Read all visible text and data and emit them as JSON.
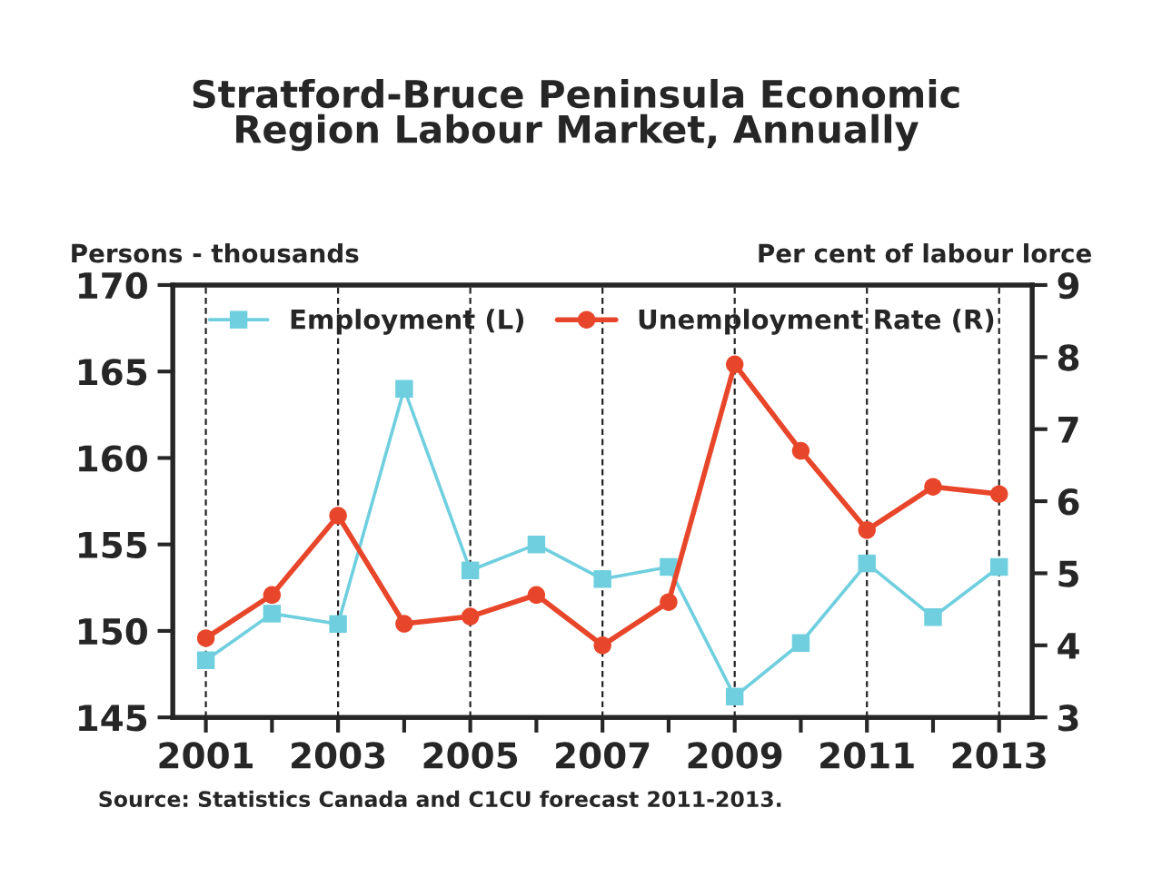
{
  "chart_data": {
    "type": "line",
    "title": "Stratford-Bruce Peninsula Economic\nRegion Labour Market, Annually",
    "ylabel": "Persons - thousands",
    "y2label": "Per cent of labour lorce",
    "x": [
      2001,
      2002,
      2003,
      2004,
      2005,
      2006,
      2007,
      2008,
      2009,
      2010,
      2011,
      2012,
      2013
    ],
    "series": [
      {
        "name": "Employment (L)",
        "color": "#6fcfdf",
        "marker": "square",
        "values": [
          148.3,
          151.0,
          150.4,
          164.0,
          153.5,
          155.0,
          153.0,
          153.7,
          146.2,
          149.3,
          153.9,
          150.8,
          153.7
        ]
      },
      {
        "name": "Unemployment Rate (R)",
        "color": "#e8462a",
        "marker": "circle",
        "axis": "y2",
        "values": [
          4.1,
          4.7,
          5.8,
          4.3,
          4.4,
          4.7,
          4.0,
          4.6,
          7.9,
          6.7,
          5.6,
          6.2,
          6.1
        ]
      }
    ],
    "xlim": [
      2000.5,
      2013.5
    ],
    "xticks": [
      2001,
      {
        "value": 2002,
        "label": null
      },
      2003,
      {
        "value": 2004,
        "label": null
      },
      2005,
      {
        "value": 2006,
        "label": null
      },
      2007,
      {
        "value": 2008,
        "label": null
      },
      2009,
      {
        "value": 2010,
        "label": null
      },
      2011,
      {
        "value": 2012,
        "label": null
      },
      2013
    ],
    "ylim": [
      145,
      170
    ],
    "yticks": [
      145,
      150,
      155,
      160,
      165,
      170
    ],
    "y2lim": [
      3,
      9
    ],
    "y2ticks": [
      3,
      4,
      5,
      6,
      7,
      8,
      9
    ],
    "grid": "x",
    "legend": "top",
    "line_style": "solid",
    "annotations": [
      "Source: Statistics Canada and C1CU forecast 2011-2013."
    ]
  }
}
